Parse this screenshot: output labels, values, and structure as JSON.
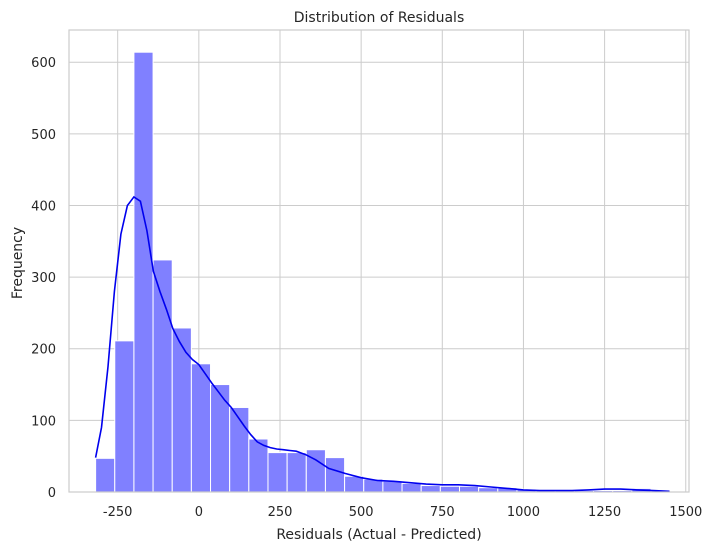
{
  "chart_data": {
    "type": "histogram",
    "title": "Distribution of Residuals",
    "xlabel": "Residuals (Actual - Predicted)",
    "ylabel": "Frequency",
    "xlim": [
      -400,
      1510
    ],
    "ylim": [
      0,
      645
    ],
    "xticks": [
      -250,
      0,
      250,
      500,
      750,
      1000,
      1250,
      1500
    ],
    "yticks": [
      0,
      100,
      200,
      300,
      400,
      500,
      600
    ],
    "grid": true,
    "bar_color": "#8080ff",
    "kde_color": "#0000ee",
    "bin_start": -318,
    "bin_width": 59,
    "counts": [
      47,
      211,
      614,
      324,
      229,
      179,
      150,
      118,
      74,
      55,
      55,
      59,
      48,
      22,
      18,
      15,
      12,
      9,
      8,
      8,
      6,
      6,
      4,
      3,
      2,
      2,
      2,
      2,
      5,
      2
    ],
    "kde": {
      "x": [
        -318,
        -300,
        -280,
        -260,
        -240,
        -220,
        -200,
        -180,
        -160,
        -140,
        -120,
        -100,
        -80,
        -60,
        -40,
        -20,
        0,
        20,
        40,
        60,
        80,
        100,
        120,
        140,
        160,
        180,
        200,
        220,
        240,
        260,
        280,
        300,
        330,
        360,
        400,
        450,
        500,
        550,
        600,
        650,
        700,
        750,
        800,
        850,
        900,
        950,
        1000,
        1050,
        1100,
        1150,
        1200,
        1250,
        1300,
        1350,
        1400,
        1450
      ],
      "y": [
        48,
        90,
        175,
        280,
        360,
        400,
        412,
        406,
        365,
        308,
        280,
        255,
        228,
        210,
        195,
        185,
        178,
        165,
        152,
        140,
        128,
        118,
        105,
        92,
        80,
        70,
        65,
        62,
        60,
        59,
        58,
        57,
        52,
        45,
        33,
        26,
        20,
        16,
        15,
        13,
        11,
        10,
        10,
        9,
        7,
        5,
        3,
        2,
        2,
        2,
        3,
        4,
        4,
        3,
        2,
        1
      ]
    }
  }
}
